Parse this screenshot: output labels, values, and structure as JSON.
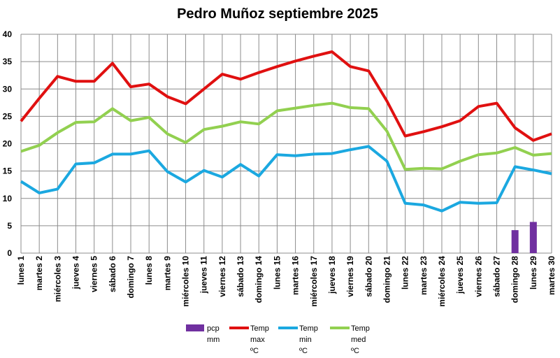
{
  "chart_data": {
    "type": "line",
    "title": "Pedro Muñoz septiembre 2025",
    "xlabel": "",
    "ylabel": "",
    "ylim": [
      0,
      40
    ],
    "yticks": [
      0,
      5,
      10,
      15,
      20,
      25,
      30,
      35,
      40
    ],
    "grid": true,
    "legend_position": "bottom",
    "categories": [
      "lunes 1",
      "martes 2",
      "miércoles 3",
      "jueves 4",
      "viernes 5",
      "sábado 6",
      "domingo 7",
      "lunes 8",
      "martes 9",
      "miércoles 10",
      "jueves 11",
      "viernes 12",
      "sábado 13",
      "domingo 14",
      "lunes 15",
      "martes 16",
      "miércoles 17",
      "jueves 18",
      "viernes 19",
      "sábado 20",
      "domingo 21",
      "lunes 22",
      "martes 23",
      "miércoles 24",
      "jueves 25",
      "viernes 26",
      "sábado 27",
      "domingo 28",
      "lunes 29",
      "martes 30"
    ],
    "series": [
      {
        "name": "pcp mm",
        "legend_lines": [
          "pcp",
          "mm"
        ],
        "kind": "bar",
        "color": "#7030A0",
        "values": [
          0,
          0,
          0,
          0,
          0,
          0,
          0,
          0,
          0,
          0,
          0,
          0,
          0,
          0,
          0,
          0,
          0,
          0,
          0,
          0,
          0,
          0,
          0,
          0,
          0,
          0,
          0,
          4.2,
          5.7,
          0
        ]
      },
      {
        "name": "Temp max ºC",
        "legend_lines": [
          "Temp",
          "max",
          "ºC"
        ],
        "kind": "line",
        "color": "#E01010",
        "values": [
          24.1,
          28.3,
          32.3,
          31.4,
          31.4,
          34.7,
          30.4,
          30.9,
          28.6,
          27.3,
          30.0,
          32.7,
          31.8,
          33.0,
          34.1,
          35.1,
          36.0,
          36.8,
          34.1,
          33.3,
          27.8,
          21.4,
          22.2,
          23.1,
          24.2,
          26.8,
          27.4,
          22.9,
          20.6,
          21.8
        ]
      },
      {
        "name": "Temp min ºC",
        "legend_lines": [
          "Temp",
          "min",
          "ºC"
        ],
        "kind": "line",
        "color": "#1BA8E0",
        "values": [
          13.1,
          11.0,
          11.7,
          16.3,
          16.5,
          18.1,
          18.1,
          18.7,
          14.9,
          13.0,
          15.1,
          13.9,
          16.2,
          14.1,
          18.0,
          17.8,
          18.1,
          18.2,
          18.9,
          19.5,
          16.8,
          9.1,
          8.8,
          7.7,
          9.3,
          9.1,
          9.2,
          15.8,
          15.2,
          14.5
        ]
      },
      {
        "name": "Temp med ºC",
        "legend_lines": [
          "Temp",
          "med",
          "ºC"
        ],
        "kind": "line",
        "color": "#92D050",
        "values": [
          18.6,
          19.7,
          22.0,
          23.9,
          24.0,
          26.4,
          24.2,
          24.8,
          21.8,
          20.2,
          22.6,
          23.2,
          24.0,
          23.6,
          26.0,
          26.5,
          27.0,
          27.4,
          26.6,
          26.4,
          22.3,
          15.3,
          15.5,
          15.4,
          16.8,
          18.0,
          18.3,
          19.3,
          17.9,
          18.2
        ]
      }
    ]
  }
}
